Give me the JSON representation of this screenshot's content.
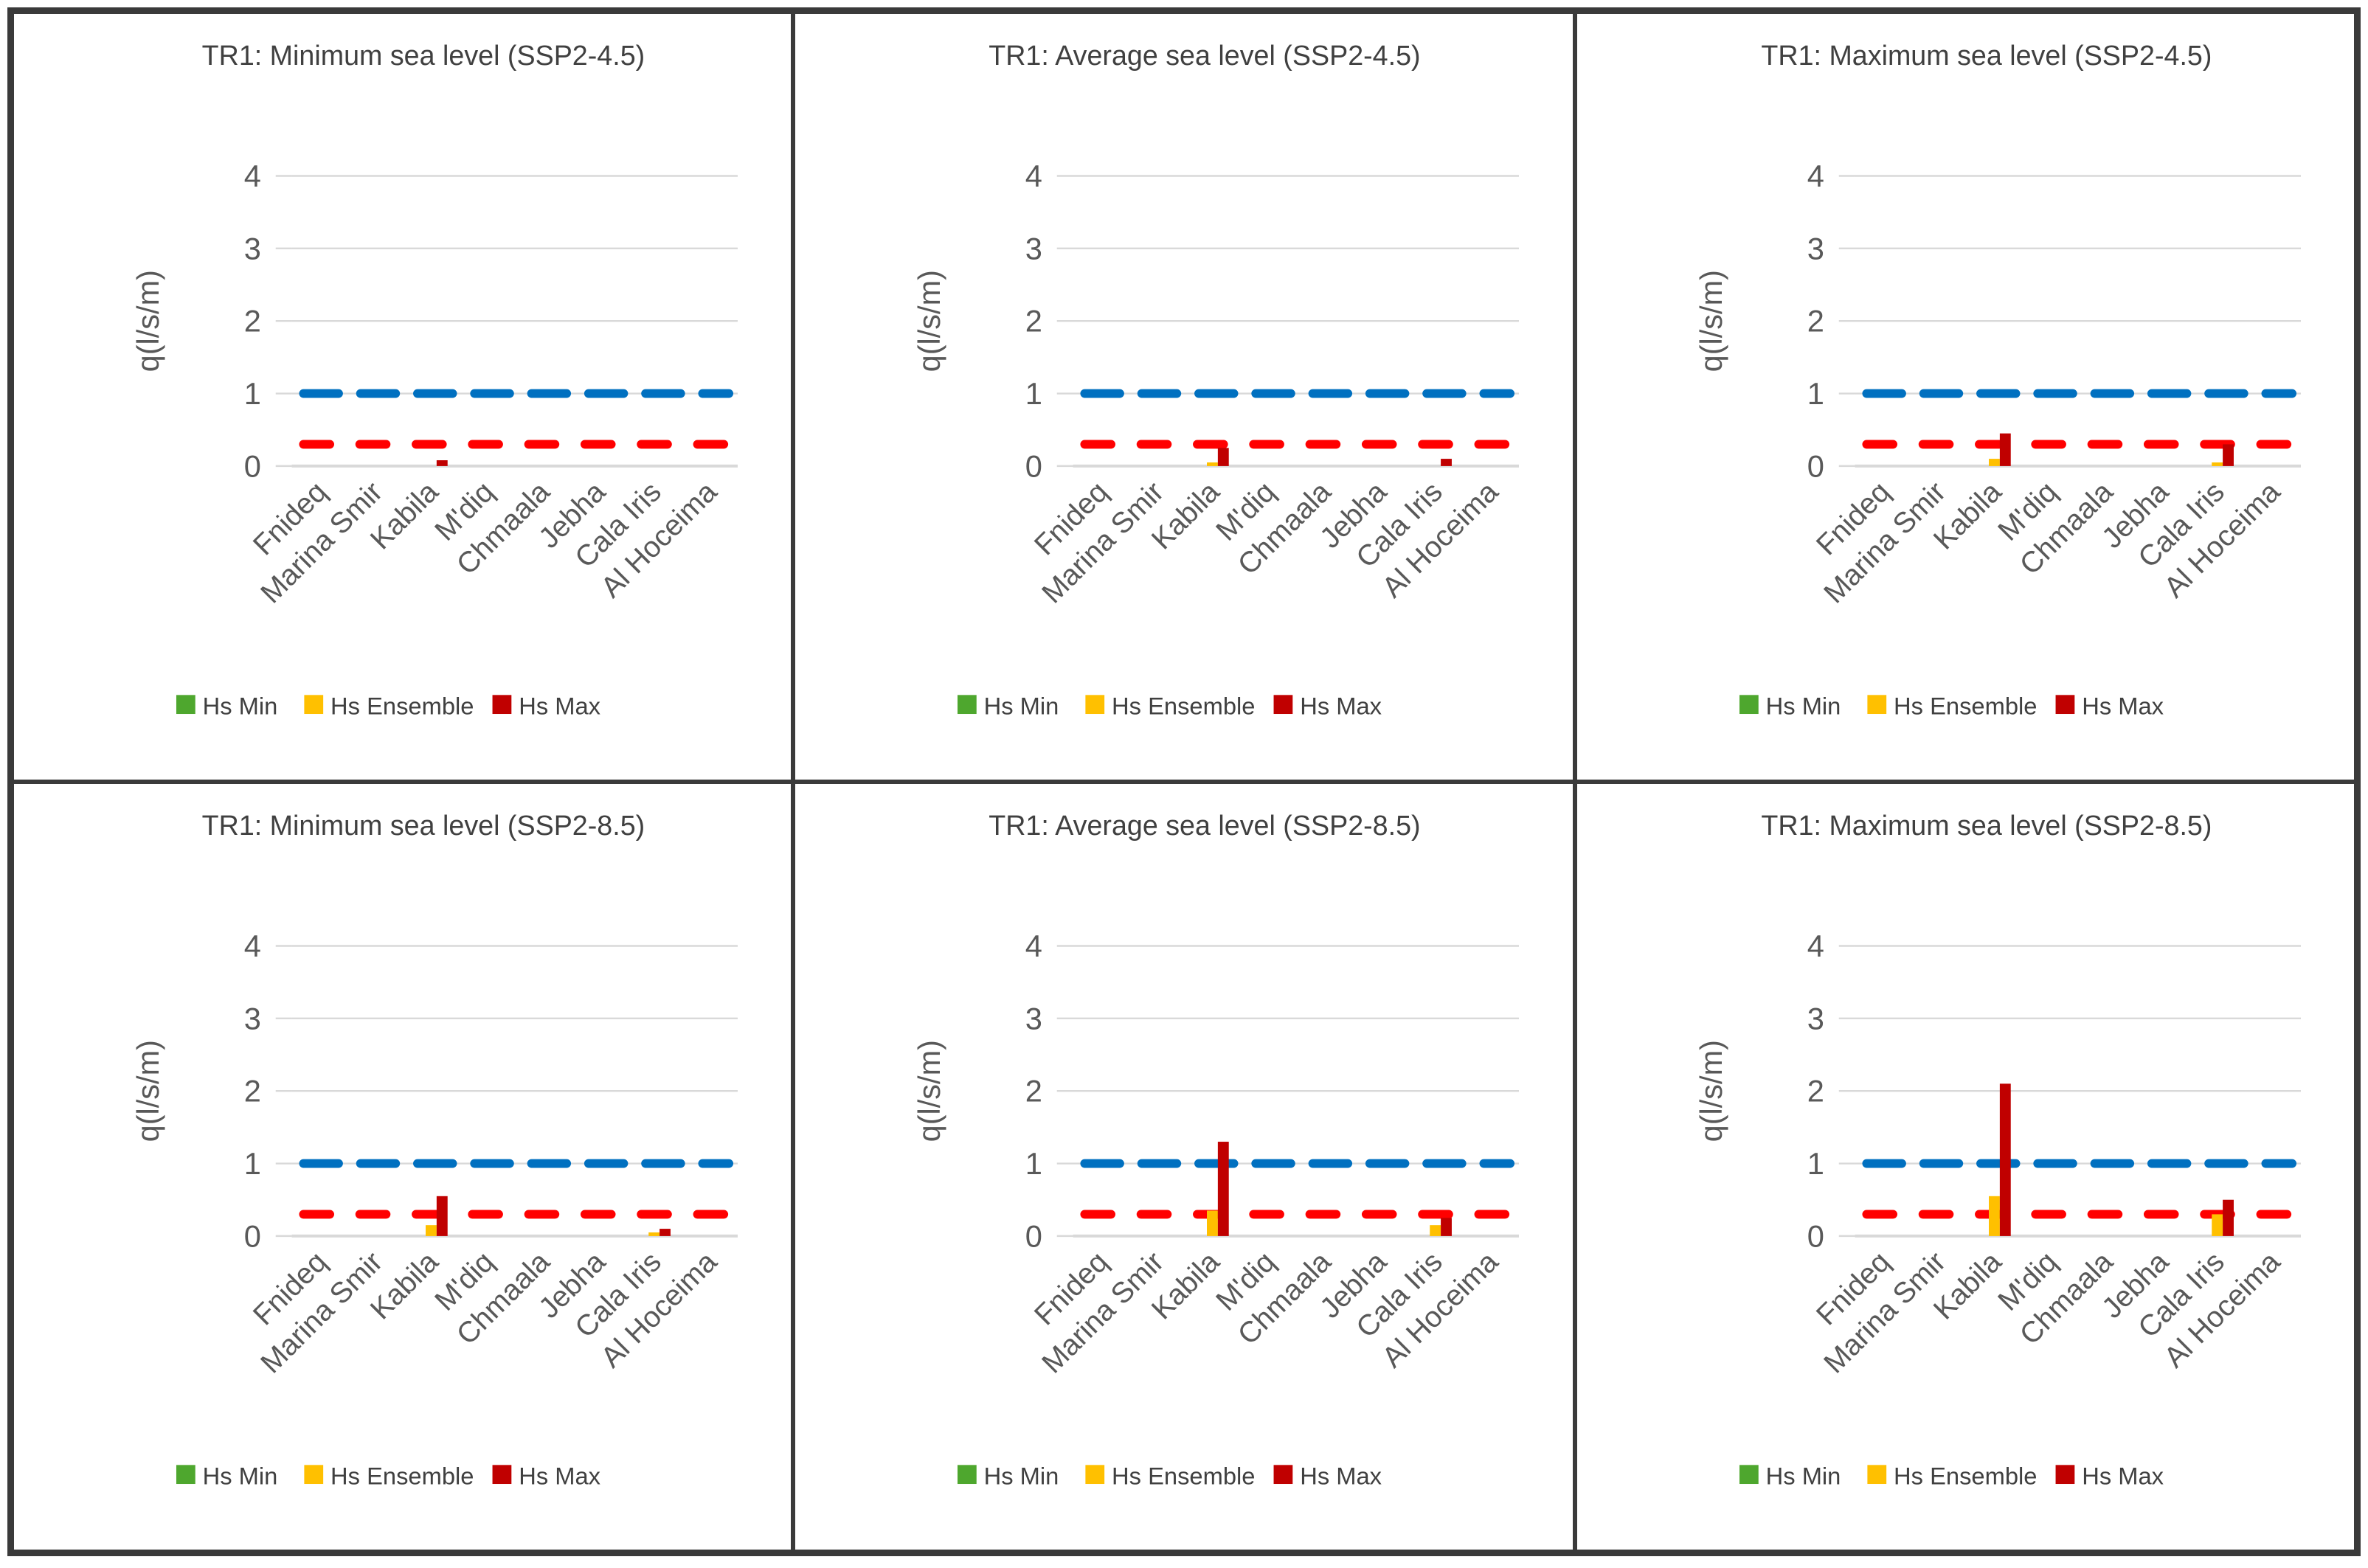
{
  "figure": {
    "ylabel": "q(l/s/m)",
    "y_ticks": [
      0,
      1,
      2,
      3,
      4
    ],
    "categories": [
      "Fnideq",
      "Marina Smir",
      "Kabila",
      "M'diq",
      "Chmaala",
      "Jebha",
      "Cala Iris",
      "Al Hoceima"
    ],
    "legend": [
      {
        "label": "Hs Min",
        "color": "#4EA72E"
      },
      {
        "label": "Hs Ensemble",
        "color": "#FFC000"
      },
      {
        "label": "Hs Max",
        "color": "#C00000"
      }
    ],
    "colors": {
      "grid": "#D9D9D9",
      "axis_text": "#595959",
      "title_text": "#404040",
      "panel_border": "#3A3A3A",
      "ref_blue": "#0070C0",
      "ref_red": "#FF0000"
    }
  },
  "chart_data": [
    {
      "type": "bar",
      "title": "TR1: Minimum sea level (SSP2-4.5)",
      "xlabel": "",
      "ylabel": "q(l/s/m)",
      "ylim": [
        0,
        4
      ],
      "grid": true,
      "legend_position": "bottom",
      "categories": [
        "Fnideq",
        "Marina Smir",
        "Kabila",
        "M'diq",
        "Chmaala",
        "Jebha",
        "Cala Iris",
        "Al Hoceima"
      ],
      "series": [
        {
          "name": "Hs Min",
          "color": "#4EA72E",
          "values": [
            0,
            0,
            0,
            0,
            0,
            0,
            0,
            0
          ]
        },
        {
          "name": "Hs Ensemble",
          "color": "#FFC000",
          "values": [
            0,
            0,
            0,
            0,
            0,
            0,
            0,
            0
          ]
        },
        {
          "name": "Hs Max",
          "color": "#C00000",
          "values": [
            0,
            0,
            0.08,
            0,
            0,
            0,
            0,
            0
          ]
        }
      ],
      "ref_lines": [
        {
          "value": 1.0,
          "color": "#0070C0",
          "style": "dashed"
        },
        {
          "value": 0.3,
          "color": "#FF0000",
          "style": "dashed"
        }
      ]
    },
    {
      "type": "bar",
      "title": "TR1: Average sea level (SSP2-4.5)",
      "xlabel": "",
      "ylabel": "q(l/s/m)",
      "ylim": [
        0,
        4
      ],
      "grid": true,
      "legend_position": "bottom",
      "categories": [
        "Fnideq",
        "Marina Smir",
        "Kabila",
        "M'diq",
        "Chmaala",
        "Jebha",
        "Cala Iris",
        "Al Hoceima"
      ],
      "series": [
        {
          "name": "Hs Min",
          "color": "#4EA72E",
          "values": [
            0,
            0,
            0,
            0,
            0,
            0,
            0,
            0
          ]
        },
        {
          "name": "Hs Ensemble",
          "color": "#FFC000",
          "values": [
            0,
            0,
            0.05,
            0,
            0,
            0,
            0,
            0
          ]
        },
        {
          "name": "Hs Max",
          "color": "#C00000",
          "values": [
            0,
            0,
            0.25,
            0,
            0,
            0,
            0.1,
            0
          ]
        }
      ],
      "ref_lines": [
        {
          "value": 1.0,
          "color": "#0070C0",
          "style": "dashed"
        },
        {
          "value": 0.3,
          "color": "#FF0000",
          "style": "dashed"
        }
      ]
    },
    {
      "type": "bar",
      "title": "TR1: Maximum sea level (SSP2-4.5)",
      "xlabel": "",
      "ylabel": "q(l/s/m)",
      "ylim": [
        0,
        4
      ],
      "grid": true,
      "legend_position": "bottom",
      "categories": [
        "Fnideq",
        "Marina Smir",
        "Kabila",
        "M'diq",
        "Chmaala",
        "Jebha",
        "Cala Iris",
        "Al Hoceima"
      ],
      "series": [
        {
          "name": "Hs Min",
          "color": "#4EA72E",
          "values": [
            0,
            0,
            0,
            0,
            0,
            0,
            0,
            0
          ]
        },
        {
          "name": "Hs Ensemble",
          "color": "#FFC000",
          "values": [
            0,
            0,
            0.1,
            0,
            0,
            0,
            0.05,
            0
          ]
        },
        {
          "name": "Hs Max",
          "color": "#C00000",
          "values": [
            0,
            0,
            0.45,
            0,
            0,
            0,
            0.3,
            0
          ]
        }
      ],
      "ref_lines": [
        {
          "value": 1.0,
          "color": "#0070C0",
          "style": "dashed"
        },
        {
          "value": 0.3,
          "color": "#FF0000",
          "style": "dashed"
        }
      ]
    },
    {
      "type": "bar",
      "title": "TR1: Minimum sea level (SSP2-8.5)",
      "xlabel": "",
      "ylabel": "q(l/s/m)",
      "ylim": [
        0,
        4
      ],
      "grid": true,
      "legend_position": "bottom",
      "categories": [
        "Fnideq",
        "Marina Smir",
        "Kabila",
        "M'diq",
        "Chmaala",
        "Jebha",
        "Cala Iris",
        "Al Hoceima"
      ],
      "series": [
        {
          "name": "Hs Min",
          "color": "#4EA72E",
          "values": [
            0,
            0,
            0,
            0,
            0,
            0,
            0,
            0
          ]
        },
        {
          "name": "Hs Ensemble",
          "color": "#FFC000",
          "values": [
            0,
            0,
            0.15,
            0,
            0,
            0,
            0.05,
            0
          ]
        },
        {
          "name": "Hs Max",
          "color": "#C00000",
          "values": [
            0,
            0,
            0.55,
            0,
            0,
            0,
            0.1,
            0
          ]
        }
      ],
      "ref_lines": [
        {
          "value": 1.0,
          "color": "#0070C0",
          "style": "dashed"
        },
        {
          "value": 0.3,
          "color": "#FF0000",
          "style": "dashed"
        }
      ]
    },
    {
      "type": "bar",
      "title": "TR1: Average sea level (SSP2-8.5)",
      "xlabel": "",
      "ylabel": "q(l/s/m)",
      "ylim": [
        0,
        4
      ],
      "grid": true,
      "legend_position": "bottom",
      "categories": [
        "Fnideq",
        "Marina Smir",
        "Kabila",
        "M'diq",
        "Chmaala",
        "Jebha",
        "Cala Iris",
        "Al Hoceima"
      ],
      "series": [
        {
          "name": "Hs Min",
          "color": "#4EA72E",
          "values": [
            0,
            0,
            0,
            0,
            0,
            0,
            0,
            0
          ]
        },
        {
          "name": "Hs Ensemble",
          "color": "#FFC000",
          "values": [
            0,
            0,
            0.35,
            0,
            0,
            0,
            0.15,
            0
          ]
        },
        {
          "name": "Hs Max",
          "color": "#C00000",
          "values": [
            0,
            0,
            1.3,
            0,
            0,
            0,
            0.25,
            0
          ]
        }
      ],
      "ref_lines": [
        {
          "value": 1.0,
          "color": "#0070C0",
          "style": "dashed"
        },
        {
          "value": 0.3,
          "color": "#FF0000",
          "style": "dashed"
        }
      ]
    },
    {
      "type": "bar",
      "title": "TR1: Maximum sea level (SSP2-8.5)",
      "xlabel": "",
      "ylabel": "q(l/s/m)",
      "ylim": [
        0,
        4
      ],
      "grid": true,
      "legend_position": "bottom",
      "categories": [
        "Fnideq",
        "Marina Smir",
        "Kabila",
        "M'diq",
        "Chmaala",
        "Jebha",
        "Cala Iris",
        "Al Hoceima"
      ],
      "series": [
        {
          "name": "Hs Min",
          "color": "#4EA72E",
          "values": [
            0,
            0,
            0,
            0,
            0,
            0,
            0,
            0
          ]
        },
        {
          "name": "Hs Ensemble",
          "color": "#FFC000",
          "values": [
            0,
            0,
            0.55,
            0,
            0,
            0,
            0.3,
            0
          ]
        },
        {
          "name": "Hs Max",
          "color": "#C00000",
          "values": [
            0,
            0,
            2.1,
            0,
            0,
            0,
            0.5,
            0
          ]
        }
      ],
      "ref_lines": [
        {
          "value": 1.0,
          "color": "#0070C0",
          "style": "dashed"
        },
        {
          "value": 0.3,
          "color": "#FF0000",
          "style": "dashed"
        }
      ]
    }
  ]
}
